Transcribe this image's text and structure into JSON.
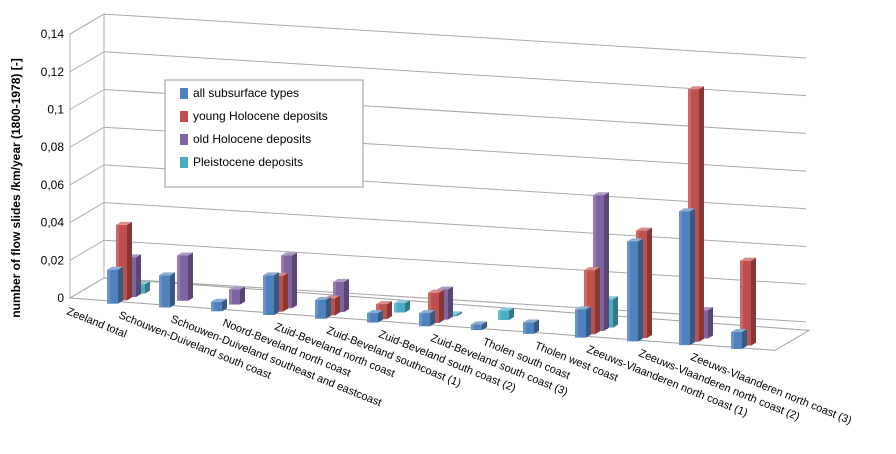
{
  "chart_data": {
    "type": "bar",
    "title": "",
    "xlabel": "",
    "ylabel": "number of flow slides /km/year (1800-1978) [-]",
    "ylim": [
      0,
      0.14
    ],
    "yticks": [
      "0",
      "0,02",
      "0,04",
      "0,06",
      "0,08",
      "0,1",
      "0,12",
      "0,14"
    ],
    "categories": [
      "Zeeland total",
      "Schouwen-Duiveland south coast",
      "Schouwen-Duiveland southeast and eastcoast",
      "Noord-Beveland north coast",
      "Zuid-Beveland north coast",
      "Zuid-Beveland southcoast (1)",
      "Zuid-Beveland south coast (2)",
      "Zuid-Beveland south coast (3)",
      "Tholen south coast",
      "Tholen west coast",
      "Zeeuws-Vlaanderen north coast (1)",
      "Zeeuws-Vlaanderen north coast (2)",
      "Zeeuws-Vlaanderen north coast (3)"
    ],
    "series": [
      {
        "name": "all subsurface types",
        "color": "#4f81bd",
        "values": [
          0.018,
          0.017,
          0.005,
          0.021,
          0.01,
          0.005,
          0.007,
          0.003,
          0.006,
          0.015,
          0.053,
          0.071,
          0.009
        ]
      },
      {
        "name": "young Holocene deposits",
        "color": "#c0504d",
        "values": [
          0.04,
          0,
          0,
          0.019,
          0.009,
          0.008,
          0.016,
          0,
          0,
          0.034,
          0.057,
          0.134,
          0.045
        ]
      },
      {
        "name": "old Holocene deposits",
        "color": "#8064a2",
        "values": [
          0.021,
          0.024,
          0.008,
          0.028,
          0.016,
          0,
          0.016,
          0,
          0,
          0.072,
          0,
          0.015,
          0
        ]
      },
      {
        "name": "Pleistocene deposits",
        "color": "#4bacc6",
        "values": [
          0.005,
          0,
          0,
          0,
          0,
          0.005,
          0.001,
          0.005,
          0,
          0.015,
          0,
          0,
          0
        ]
      }
    ],
    "grid": true,
    "legend_position": "top-left"
  }
}
